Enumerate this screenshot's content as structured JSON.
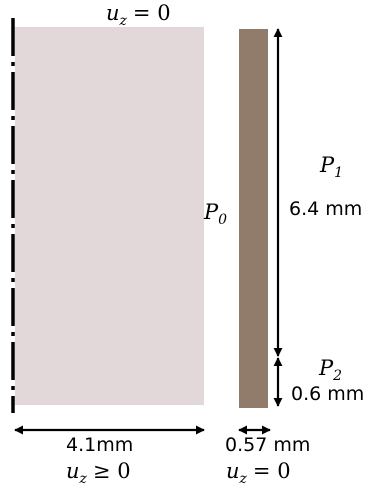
{
  "colors": {
    "domain_fill": "#e2d8d9",
    "plate_fill": "#917b6b",
    "line": "#000000"
  },
  "labels": {
    "top_bc": {
      "symbol": "u",
      "sub": "z",
      "rel": "= 0"
    },
    "p0": {
      "symbol": "P",
      "sub": "0"
    },
    "p1": {
      "symbol": "P",
      "sub": "1"
    },
    "p2": {
      "symbol": "P",
      "sub": "2"
    },
    "dim_p1": "6.4 mm",
    "dim_p2": "0.6 mm",
    "dim_domain_width": "4.1mm",
    "dim_plate_width": "0.57 mm",
    "bottom_bc_domain": {
      "symbol": "u",
      "sub": "z",
      "rel": "≥ 0"
    },
    "bottom_bc_plate": {
      "symbol": "u",
      "sub": "z",
      "rel": "= 0"
    }
  }
}
